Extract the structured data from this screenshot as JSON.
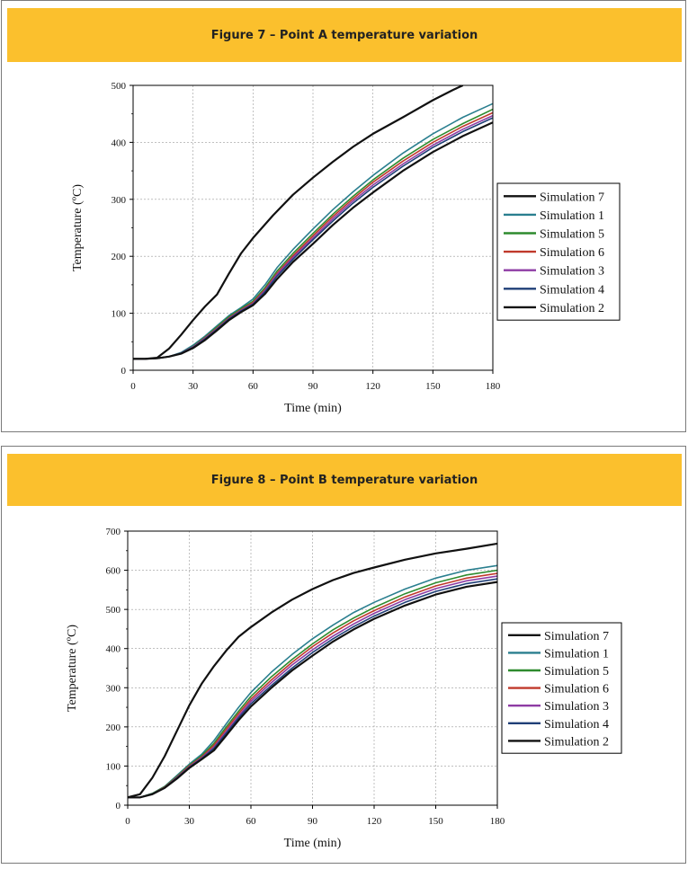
{
  "figures": [
    {
      "caption": "Figure 7 – Point A temperature variation",
      "chart_data": {
        "type": "line",
        "xlabel": "Time (min)",
        "ylabel": "Temperature (ºC)",
        "xlim": [
          0,
          180
        ],
        "ylim": [
          0,
          500
        ],
        "xticks": [
          0,
          30,
          60,
          90,
          120,
          150,
          180
        ],
        "yticks": [
          0,
          100,
          200,
          300,
          400,
          500
        ],
        "grid": true,
        "legend_position": "right",
        "series": [
          {
            "name": "Simulation 7",
            "color": "#111111",
            "x": [
              0,
              6,
              12,
              18,
              24,
              30,
              36,
              42,
              48,
              54,
              60,
              70,
              80,
              90,
              100,
              110,
              120,
              135,
              150,
              160,
              165
            ],
            "y": [
              20,
              20,
              22,
              38,
              62,
              88,
              112,
              133,
              170,
              205,
              232,
              272,
              308,
              338,
              366,
              392,
              415,
              444,
              474,
              492,
              500
            ]
          },
          {
            "name": "Simulation 1",
            "color": "#2a7f8f",
            "x": [
              0,
              6,
              12,
              18,
              24,
              30,
              36,
              42,
              48,
              54,
              60,
              66,
              72,
              80,
              90,
              100,
              110,
              120,
              135,
              150,
              165,
              180
            ],
            "y": [
              20,
              20,
              21,
              24,
              31,
              44,
              60,
              78,
              96,
              110,
              125,
              150,
              180,
              212,
              248,
              282,
              313,
              342,
              381,
              415,
              444,
              468
            ]
          },
          {
            "name": "Simulation 5",
            "color": "#2e8b2e",
            "x": [
              0,
              6,
              12,
              18,
              24,
              30,
              36,
              42,
              48,
              54,
              60,
              66,
              72,
              80,
              90,
              100,
              110,
              120,
              135,
              150,
              165,
              180
            ],
            "y": [
              20,
              20,
              21,
              24,
              30,
              42,
              58,
              76,
              94,
              108,
              121,
              145,
              174,
              205,
              240,
              274,
              305,
              334,
              372,
              405,
              433,
              458
            ]
          },
          {
            "name": "Simulation 6",
            "color": "#c0392b",
            "x": [
              0,
              6,
              12,
              18,
              24,
              30,
              36,
              42,
              48,
              54,
              60,
              66,
              72,
              80,
              90,
              100,
              110,
              120,
              135,
              150,
              165,
              180
            ],
            "y": [
              20,
              20,
              21,
              24,
              30,
              41,
              57,
              74,
              92,
              106,
              119,
              142,
              170,
              201,
              236,
              270,
              301,
              330,
              367,
              400,
              428,
              452
            ]
          },
          {
            "name": "Simulation 3",
            "color": "#8e3ca4",
            "x": [
              0,
              6,
              12,
              18,
              24,
              30,
              36,
              42,
              48,
              54,
              60,
              66,
              72,
              80,
              90,
              100,
              110,
              120,
              135,
              150,
              165,
              180
            ],
            "y": [
              20,
              20,
              21,
              24,
              30,
              41,
              56,
              73,
              91,
              105,
              117,
              140,
              168,
              198,
              232,
              266,
              297,
              325,
              362,
              395,
              423,
              447
            ]
          },
          {
            "name": "Simulation 4",
            "color": "#1f3f77",
            "x": [
              0,
              6,
              12,
              18,
              24,
              30,
              36,
              42,
              48,
              54,
              60,
              66,
              72,
              80,
              90,
              100,
              110,
              120,
              135,
              150,
              165,
              180
            ],
            "y": [
              20,
              20,
              21,
              24,
              30,
              40,
              55,
              72,
              90,
              104,
              116,
              138,
              165,
              195,
              229,
              262,
              293,
              321,
              358,
              391,
              419,
              443
            ]
          },
          {
            "name": "Simulation 2",
            "color": "#111111",
            "x": [
              0,
              6,
              12,
              18,
              24,
              30,
              36,
              42,
              48,
              54,
              60,
              66,
              72,
              80,
              90,
              100,
              110,
              120,
              135,
              150,
              165,
              180
            ],
            "y": [
              20,
              20,
              21,
              24,
              29,
              39,
              53,
              70,
              88,
              102,
              114,
              134,
              160,
              190,
              222,
              255,
              285,
              312,
              350,
              383,
              411,
              435
            ]
          }
        ]
      }
    },
    {
      "caption": "Figure 8 – Point B temperature variation",
      "chart_data": {
        "type": "line",
        "xlabel": "Time (min)",
        "ylabel": "Temperature (ºC)",
        "xlim": [
          0,
          180
        ],
        "ylim": [
          0,
          700
        ],
        "xticks": [
          0,
          30,
          60,
          90,
          120,
          150,
          180
        ],
        "yticks": [
          0,
          100,
          200,
          300,
          400,
          500,
          600,
          700
        ],
        "grid": true,
        "legend_position": "right",
        "series": [
          {
            "name": "Simulation 7",
            "color": "#111111",
            "x": [
              0,
              6,
              12,
              18,
              24,
              30,
              36,
              42,
              48,
              54,
              60,
              70,
              80,
              90,
              100,
              110,
              120,
              135,
              150,
              165,
              180
            ],
            "y": [
              20,
              28,
              70,
              125,
              190,
              255,
              310,
              355,
              395,
              430,
              455,
              492,
              525,
              552,
              575,
              593,
              607,
              627,
              643,
              655,
              668
            ]
          },
          {
            "name": "Simulation 1",
            "color": "#2a7f8f",
            "x": [
              0,
              6,
              12,
              18,
              24,
              30,
              36,
              42,
              48,
              54,
              60,
              70,
              80,
              90,
              100,
              110,
              120,
              135,
              150,
              165,
              180
            ],
            "y": [
              20,
              20,
              30,
              48,
              76,
              105,
              130,
              165,
              208,
              250,
              288,
              340,
              385,
              425,
              460,
              492,
              518,
              552,
              580,
              600,
              612
            ]
          },
          {
            "name": "Simulation 5",
            "color": "#2e8b2e",
            "x": [
              0,
              6,
              12,
              18,
              24,
              30,
              36,
              42,
              48,
              54,
              60,
              70,
              80,
              90,
              100,
              110,
              120,
              135,
              150,
              165,
              180
            ],
            "y": [
              20,
              20,
              30,
              47,
              74,
              102,
              126,
              158,
              200,
              240,
              278,
              328,
              372,
              412,
              448,
              478,
              505,
              540,
              568,
              588,
              600
            ]
          },
          {
            "name": "Simulation 6",
            "color": "#c0392b",
            "x": [
              0,
              6,
              12,
              18,
              24,
              30,
              36,
              42,
              48,
              54,
              60,
              70,
              80,
              90,
              100,
              110,
              120,
              135,
              150,
              165,
              180
            ],
            "y": [
              20,
              20,
              29,
              46,
              72,
              100,
              123,
              153,
              194,
              234,
              271,
              320,
              365,
              405,
              440,
              471,
              497,
              532,
              560,
              580,
              592
            ]
          },
          {
            "name": "Simulation 3",
            "color": "#8e3ca4",
            "x": [
              0,
              6,
              12,
              18,
              24,
              30,
              36,
              42,
              48,
              54,
              60,
              70,
              80,
              90,
              100,
              110,
              120,
              135,
              150,
              165,
              180
            ],
            "y": [
              20,
              20,
              29,
              45,
              71,
              98,
              121,
              148,
              188,
              228,
              265,
              313,
              358,
              397,
              432,
              463,
              490,
              525,
              553,
              573,
              585
            ]
          },
          {
            "name": "Simulation 4",
            "color": "#1f3f77",
            "x": [
              0,
              6,
              12,
              18,
              24,
              30,
              36,
              42,
              48,
              54,
              60,
              70,
              80,
              90,
              100,
              110,
              120,
              135,
              150,
              165,
              180
            ],
            "y": [
              20,
              20,
              29,
              45,
              70,
              97,
              119,
              145,
              184,
              223,
              259,
              306,
              350,
              390,
              425,
              456,
              483,
              518,
              546,
              566,
              578
            ]
          },
          {
            "name": "Simulation 2",
            "color": "#111111",
            "x": [
              0,
              6,
              12,
              18,
              24,
              30,
              36,
              42,
              48,
              54,
              60,
              70,
              80,
              90,
              100,
              110,
              120,
              135,
              150,
              165,
              180
            ],
            "y": [
              20,
              20,
              28,
              44,
              68,
              95,
              117,
              140,
              178,
              217,
              252,
              300,
              344,
              382,
              418,
              449,
              476,
              510,
              538,
              558,
              570
            ]
          }
        ]
      }
    }
  ]
}
